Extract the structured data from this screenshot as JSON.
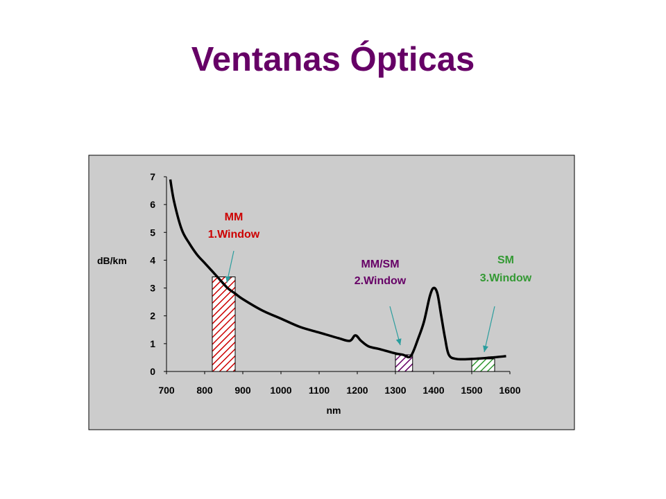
{
  "slide": {
    "title": "Ventanas Ópticas"
  },
  "chart_data": {
    "type": "line",
    "xlabel": "nm",
    "ylabel": "dB/km",
    "xlim": [
      700,
      1600
    ],
    "ylim": [
      0,
      7
    ],
    "x_ticks": [
      700,
      800,
      900,
      1000,
      1100,
      1200,
      1300,
      1400,
      1500,
      1600
    ],
    "y_ticks": [
      0,
      1,
      2,
      3,
      4,
      5,
      6,
      7
    ],
    "grid": false,
    "series": [
      {
        "x": [
          710,
          720,
          740,
          760,
          780,
          800,
          820,
          840,
          860,
          880,
          900,
          950,
          1000,
          1050,
          1100,
          1150,
          1180,
          1195,
          1210,
          1230,
          1260,
          1300,
          1320,
          1340,
          1360,
          1375,
          1390,
          1400,
          1410,
          1420,
          1430,
          1440,
          1460,
          1500,
          1550,
          1590
        ],
        "y": [
          6.9,
          6.1,
          5.1,
          4.6,
          4.2,
          3.9,
          3.6,
          3.3,
          3.0,
          2.8,
          2.6,
          2.2,
          1.9,
          1.6,
          1.4,
          1.2,
          1.1,
          1.3,
          1.1,
          0.9,
          0.8,
          0.65,
          0.6,
          0.55,
          1.2,
          1.8,
          2.7,
          3.0,
          2.8,
          2.0,
          1.2,
          0.6,
          0.45,
          0.45,
          0.5,
          0.55
        ],
        "color": "#000000"
      }
    ],
    "windows": [
      {
        "label_line1": "MM",
        "label_line2": "1.Window",
        "x_start": 820,
        "x_end": 880,
        "y_top": 3.4,
        "color": "#cc0000"
      },
      {
        "label_line1": "MM/SM",
        "label_line2": "2.Window",
        "x_start": 1300,
        "x_end": 1345,
        "y_top": 0.6,
        "color": "#660066"
      },
      {
        "label_line1": "SM",
        "label_line2": "3.Window",
        "x_start": 1500,
        "x_end": 1560,
        "y_top": 0.45,
        "color": "#339933"
      }
    ],
    "plot_background": "#cccccc"
  }
}
